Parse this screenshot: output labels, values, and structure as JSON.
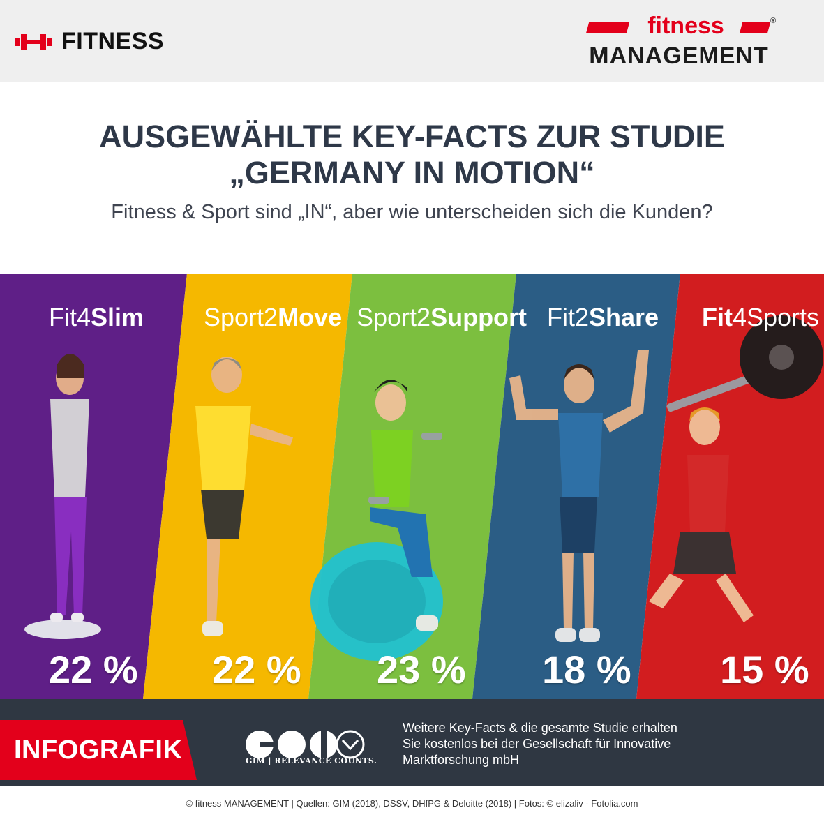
{
  "header": {
    "section_label": "FITNESS",
    "section_icon": "dumbbell-icon",
    "logo_top": "fitness",
    "logo_bottom": "MANAGEMENT",
    "logo_mark": "®"
  },
  "title_line1": "AUSGEWÄHLTE KEY-FACTS ZUR STUDIE",
  "title_line2": "„GERMANY IN MOTION“",
  "subtitle": "Fitness & Sport sind „IN“, aber wie unterscheiden sich die Kunden?",
  "segments": [
    {
      "light": "Fit4",
      "bold": "Slim",
      "percent": "22 %",
      "color": "#5f1f87"
    },
    {
      "light": "Sport2",
      "bold": "Move",
      "percent": "22 %",
      "color": "#f5b800"
    },
    {
      "light": "Sport2",
      "bold": "Support",
      "percent": "23 %",
      "color": "#7cbf3f"
    },
    {
      "light": "Fit2",
      "bold": "Share",
      "percent": "18 %",
      "color": "#2b5d85"
    },
    {
      "bold": "Fit",
      "light": "4Sports",
      "percent": "15 %",
      "color": "#d21d1f"
    }
  ],
  "footer": {
    "badge": "INFOGRAFIK",
    "gim_tagline": "GIM | RELEVANCE COUNTS.",
    "note_lines": [
      "Weitere Key-Facts & die gesamte Studie erhalten",
      "Sie kostenlos bei der Gesellschaft für Innovative",
      "Marktforschung mbH"
    ]
  },
  "credit": "© fitness MANAGEMENT | Quellen: GIM (2018), DSSV, DHfPG & Deloitte (2018) | Fotos: © elizaliv - Fotolia.com",
  "colors": {
    "accent_red": "#e3001b",
    "title": "#2e3848",
    "footer_bg": "#2f3742"
  }
}
